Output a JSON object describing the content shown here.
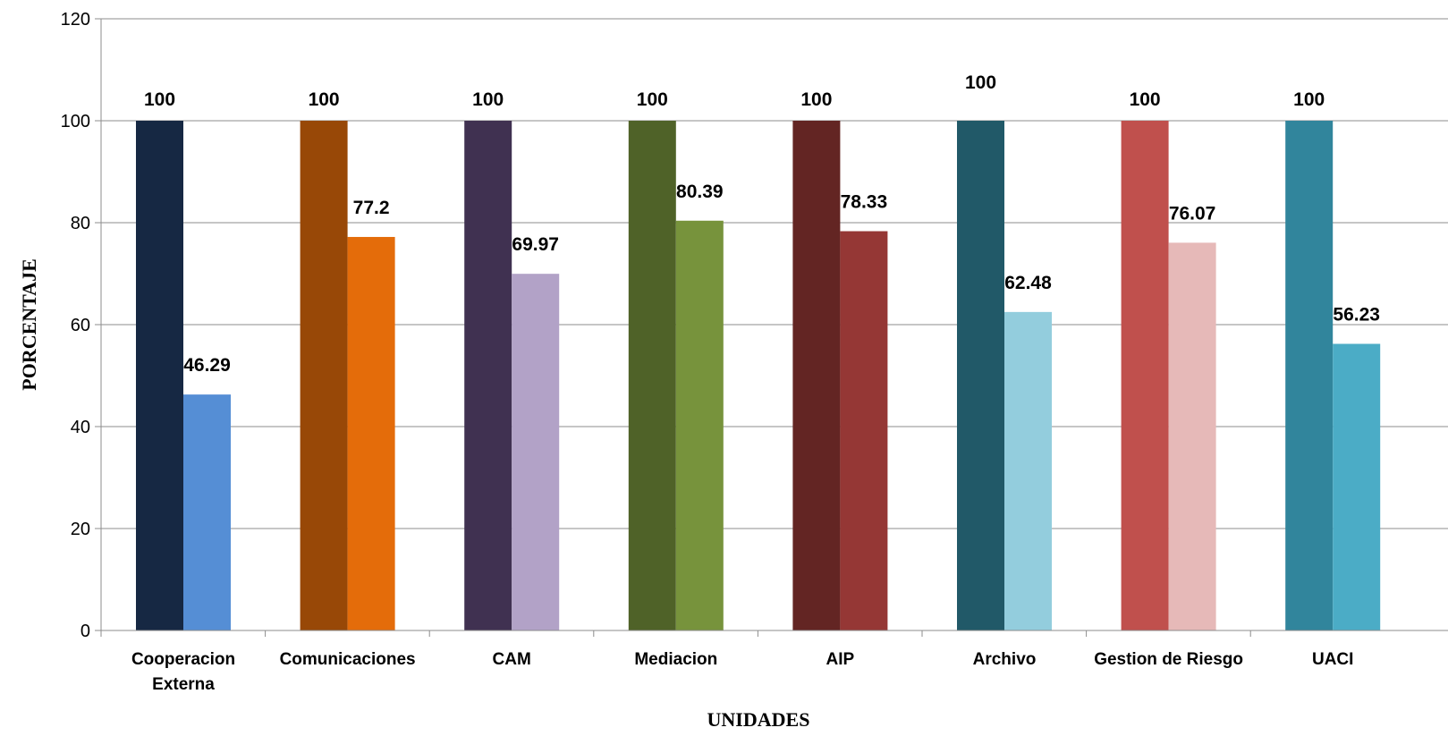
{
  "chart_data": {
    "type": "bar",
    "title": "",
    "xlabel": "UNIDADES",
    "ylabel": "PORCENTAJE",
    "ylim": [
      0,
      120
    ],
    "yticks": [
      0,
      20,
      40,
      60,
      80,
      100,
      120
    ],
    "grid": true,
    "legend": "none",
    "categories": [
      [
        "Cooperacion",
        "Externa"
      ],
      [
        "Comunicaciones"
      ],
      [
        "CAM"
      ],
      [
        "Mediacion"
      ],
      [
        "AIP"
      ],
      [
        "Archivo"
      ],
      [
        "Gestion de Riesgo"
      ],
      [
        "UACI"
      ]
    ],
    "series": [
      {
        "values": [
          100,
          100,
          100,
          100,
          100,
          100,
          100,
          100
        ]
      },
      {
        "values": [
          46.29,
          77.2,
          69.97,
          80.39,
          78.33,
          62.48,
          76.07,
          56.23
        ]
      }
    ],
    "colors": [
      [
        "#162843",
        "#558ED5"
      ],
      [
        "#984807",
        "#E46C0A"
      ],
      [
        "#403151",
        "#B2A2C7"
      ],
      [
        "#4F6228",
        "#77933C"
      ],
      [
        "#632523",
        "#953735"
      ],
      [
        "#215968",
        "#93CDDD"
      ],
      [
        "#C0504D",
        "#E6B9B8"
      ],
      [
        "#31859C",
        "#4BACC6"
      ]
    ],
    "data_labels": [
      [
        "100",
        "46.29"
      ],
      [
        "100",
        "77.2"
      ],
      [
        "100",
        "69.97"
      ],
      [
        "100",
        "80.39"
      ],
      [
        "100",
        "78.33"
      ],
      [
        "100",
        "62.48"
      ],
      [
        "100",
        "76.07"
      ],
      [
        "100",
        "56.23"
      ]
    ]
  }
}
